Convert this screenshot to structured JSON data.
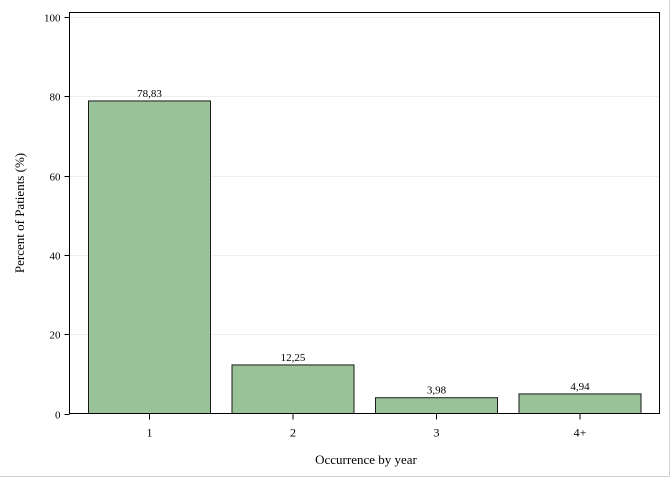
{
  "chart_data": {
    "type": "bar",
    "categories": [
      "1",
      "2",
      "3",
      "4+"
    ],
    "values": [
      78.83,
      12.25,
      3.98,
      4.94
    ],
    "value_labels": [
      "78,83",
      "12,25",
      "3,98",
      "4,94"
    ],
    "title": "",
    "xlabel": "Occurrence by year",
    "ylabel": "Percent of Patients (%)",
    "ylim": [
      0,
      100
    ],
    "yticks": [
      0,
      20,
      40,
      60,
      80,
      100
    ],
    "grid": true,
    "legend": "none",
    "colors": {
      "bar_fill": "#99c298",
      "bar_stroke": "#1a1a1a",
      "grid": "#eeeeee",
      "axis": "#000000"
    }
  }
}
